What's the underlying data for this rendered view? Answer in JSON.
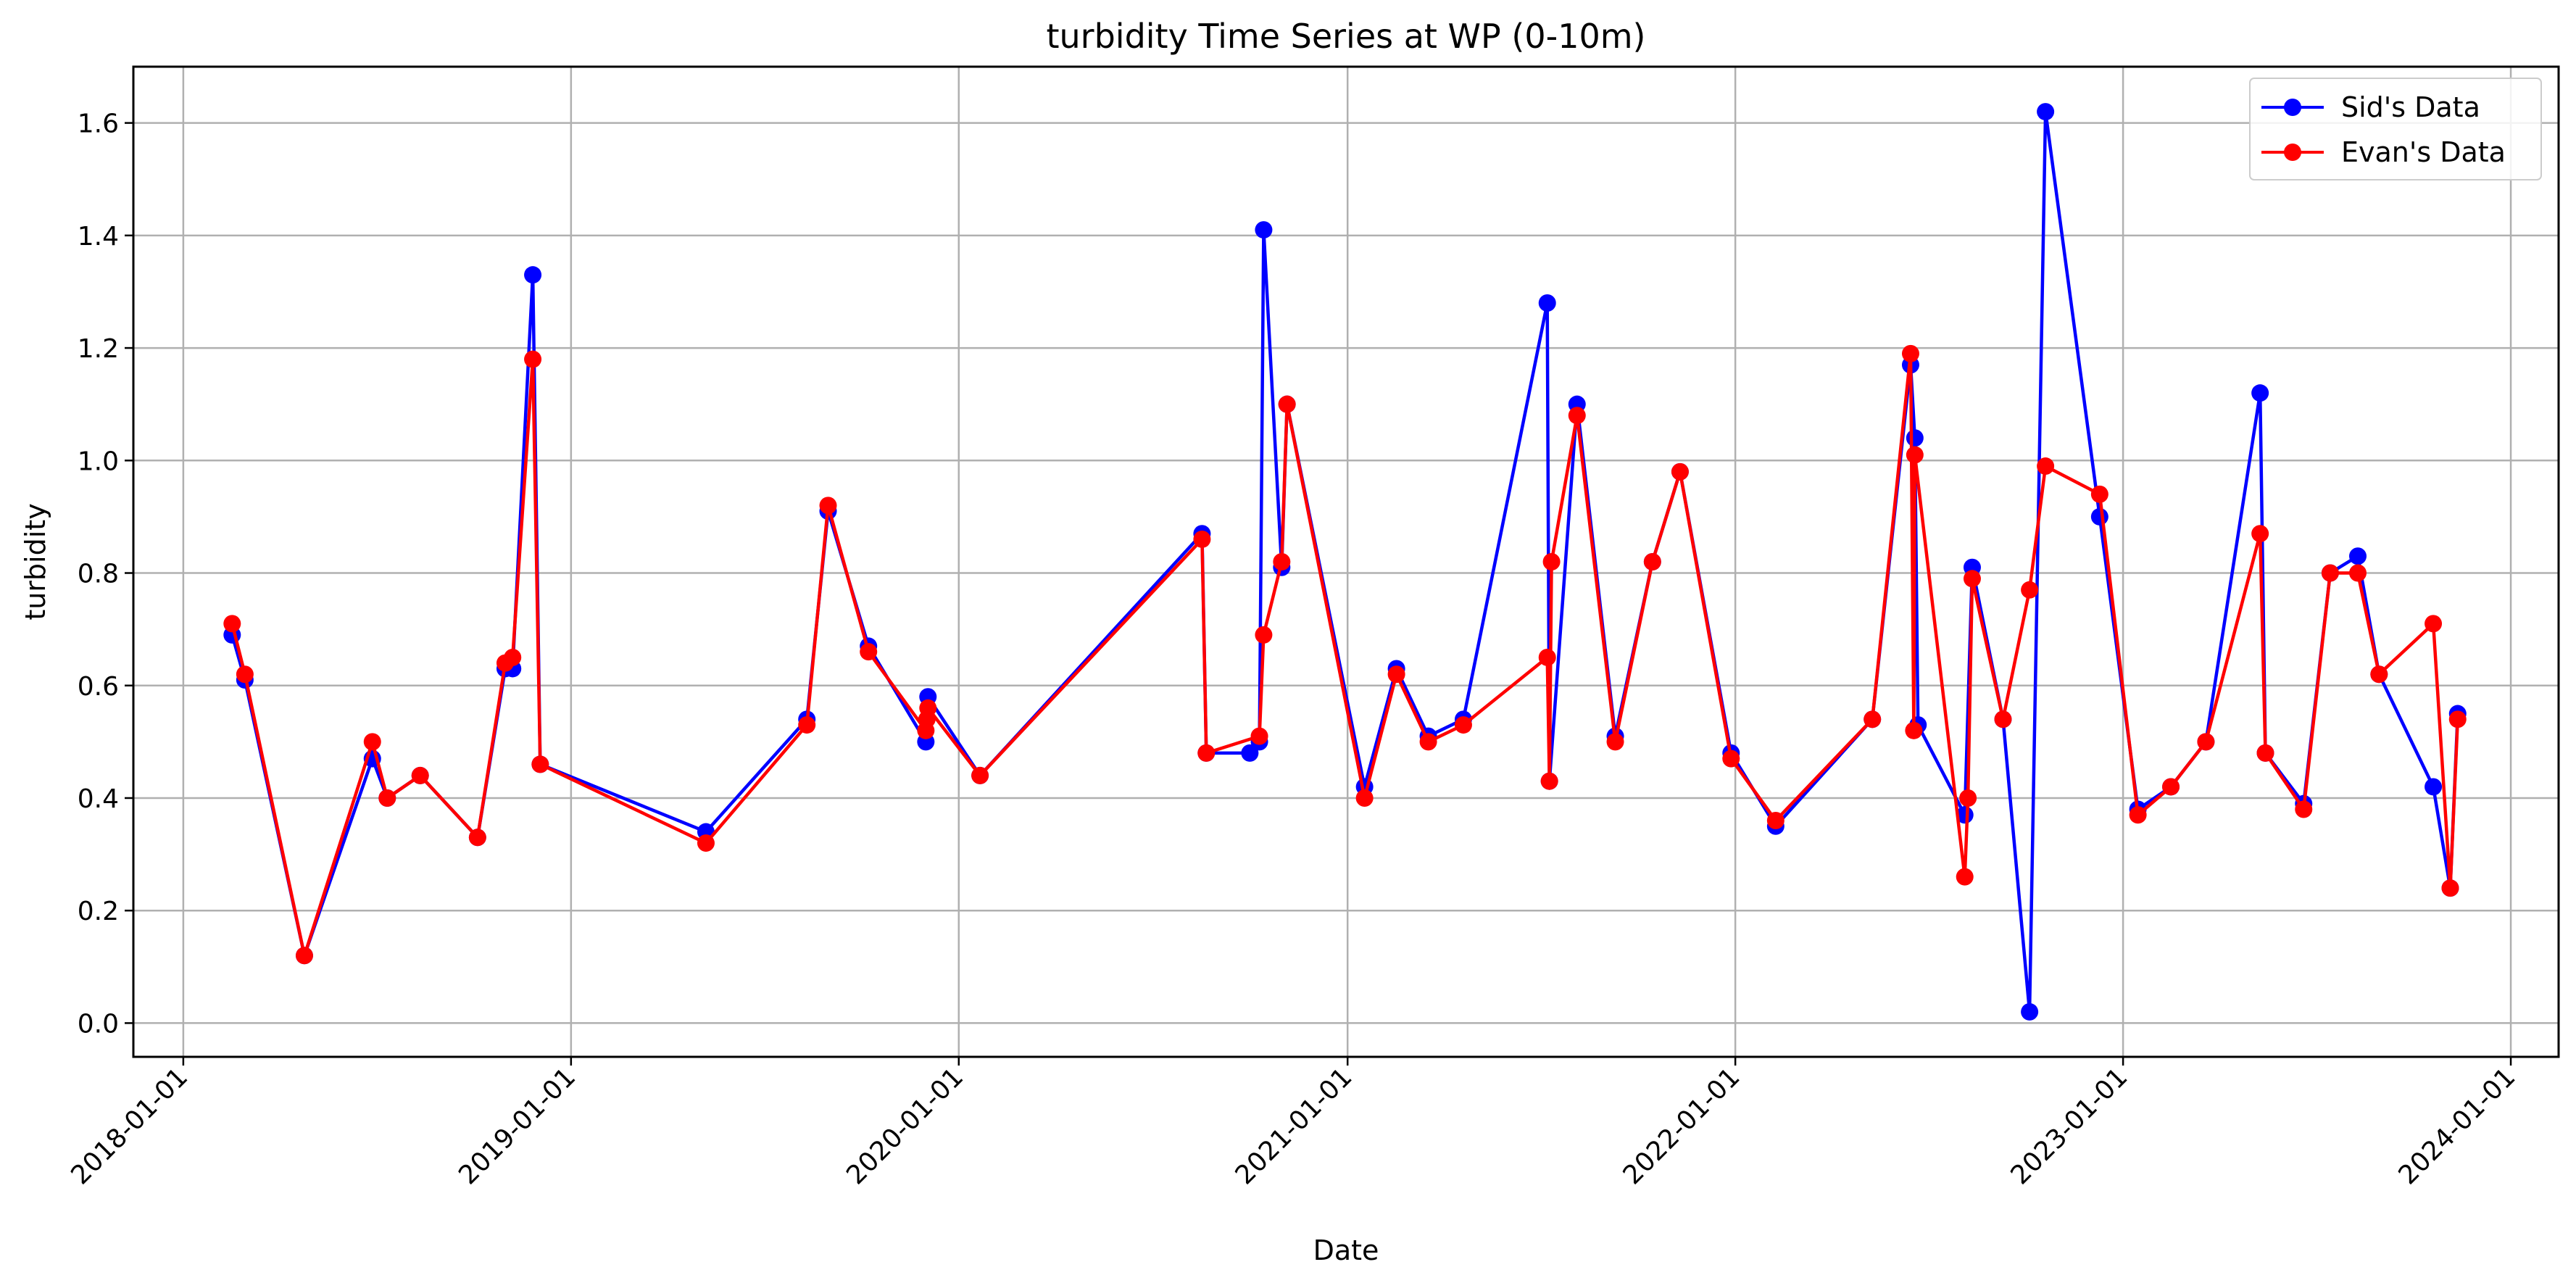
{
  "chart_data": {
    "type": "line",
    "title": "turbidity Time Series at WP (0-10m)",
    "xlabel": "Date",
    "ylabel": "turbidity",
    "x_axis": "date",
    "xlim": [
      "2017-11-15",
      "2024-02-15"
    ],
    "ylim": [
      -0.06,
      1.7
    ],
    "x_ticks": [
      "2018-01-01",
      "2019-01-01",
      "2020-01-01",
      "2021-01-01",
      "2022-01-01",
      "2023-01-01",
      "2024-01-01"
    ],
    "y_ticks": [
      "0.0",
      "0.2",
      "0.4",
      "0.6",
      "0.8",
      "1.0",
      "1.2",
      "1.4",
      "1.6"
    ],
    "grid": true,
    "legend": {
      "position": "top-right",
      "entries": [
        "Sid's Data",
        "Evan's Data"
      ]
    },
    "series": [
      {
        "name": "Sid's Data",
        "color": "#0000ff",
        "points": [
          [
            "2018-02-16",
            0.69
          ],
          [
            "2018-02-28",
            0.61
          ],
          [
            "2018-04-25",
            0.12
          ],
          [
            "2018-06-28",
            0.47
          ],
          [
            "2018-07-12",
            0.4
          ],
          [
            "2018-08-12",
            0.44
          ],
          [
            "2018-10-05",
            0.33
          ],
          [
            "2018-10-31",
            0.63
          ],
          [
            "2018-11-07",
            0.63
          ],
          [
            "2018-11-26",
            1.33
          ],
          [
            "2018-12-03",
            0.46
          ],
          [
            "2019-05-08",
            0.34
          ],
          [
            "2019-08-11",
            0.54
          ],
          [
            "2019-08-31",
            0.91
          ],
          [
            "2019-10-08",
            0.67
          ],
          [
            "2019-12-01",
            0.5
          ],
          [
            "2019-12-03",
            0.58
          ],
          [
            "2020-01-21",
            0.44
          ],
          [
            "2020-08-17",
            0.87
          ],
          [
            "2020-08-21",
            0.48
          ],
          [
            "2020-10-01",
            0.48
          ],
          [
            "2020-10-10",
            0.5
          ],
          [
            "2020-10-14",
            1.41
          ],
          [
            "2020-10-31",
            0.81
          ],
          [
            "2020-11-05",
            1.1
          ],
          [
            "2021-01-17",
            0.42
          ],
          [
            "2021-02-16",
            0.63
          ],
          [
            "2021-03-18",
            0.51
          ],
          [
            "2021-04-20",
            0.54
          ],
          [
            "2021-07-08",
            1.28
          ],
          [
            "2021-07-10",
            0.43
          ],
          [
            "2021-08-05",
            1.1
          ],
          [
            "2021-09-10",
            0.51
          ],
          [
            "2021-10-15",
            0.82
          ],
          [
            "2021-11-10",
            0.98
          ],
          [
            "2021-12-28",
            0.48
          ],
          [
            "2022-02-08",
            0.35
          ],
          [
            "2022-05-10",
            0.54
          ],
          [
            "2022-06-15",
            1.17
          ],
          [
            "2022-06-19",
            1.04
          ],
          [
            "2022-06-22",
            0.53
          ],
          [
            "2022-08-05",
            0.37
          ],
          [
            "2022-08-12",
            0.81
          ],
          [
            "2022-09-10",
            0.54
          ],
          [
            "2022-10-05",
            0.02
          ],
          [
            "2022-10-20",
            1.62
          ],
          [
            "2022-12-10",
            0.9
          ],
          [
            "2023-01-15",
            0.38
          ],
          [
            "2023-02-15",
            0.42
          ],
          [
            "2023-03-20",
            0.5
          ],
          [
            "2023-05-10",
            1.12
          ],
          [
            "2023-05-15",
            0.48
          ],
          [
            "2023-06-20",
            0.39
          ],
          [
            "2023-07-15",
            0.8
          ],
          [
            "2023-08-10",
            0.83
          ],
          [
            "2023-08-30",
            0.62
          ],
          [
            "2023-10-20",
            0.42
          ],
          [
            "2023-11-05",
            0.24
          ],
          [
            "2023-11-12",
            0.55
          ]
        ]
      },
      {
        "name": "Evan's Data",
        "color": "#ff0000",
        "points": [
          [
            "2018-02-16",
            0.71
          ],
          [
            "2018-02-28",
            0.62
          ],
          [
            "2018-04-25",
            0.12
          ],
          [
            "2018-06-28",
            0.5
          ],
          [
            "2018-07-12",
            0.4
          ],
          [
            "2018-08-12",
            0.44
          ],
          [
            "2018-10-05",
            0.33
          ],
          [
            "2018-10-31",
            0.64
          ],
          [
            "2018-11-07",
            0.65
          ],
          [
            "2018-11-26",
            1.18
          ],
          [
            "2018-12-03",
            0.46
          ],
          [
            "2019-05-08",
            0.32
          ],
          [
            "2019-08-11",
            0.53
          ],
          [
            "2019-08-31",
            0.92
          ],
          [
            "2019-10-08",
            0.66
          ],
          [
            "2019-12-01",
            0.52
          ],
          [
            "2019-12-02",
            0.54
          ],
          [
            "2019-12-03",
            0.56
          ],
          [
            "2020-01-21",
            0.44
          ],
          [
            "2020-08-17",
            0.86
          ],
          [
            "2020-08-21",
            0.48
          ],
          [
            "2020-10-10",
            0.51
          ],
          [
            "2020-10-14",
            0.69
          ],
          [
            "2020-10-31",
            0.82
          ],
          [
            "2020-11-05",
            1.1
          ],
          [
            "2021-01-17",
            0.4
          ],
          [
            "2021-02-16",
            0.62
          ],
          [
            "2021-03-18",
            0.5
          ],
          [
            "2021-04-20",
            0.53
          ],
          [
            "2021-07-08",
            0.65
          ],
          [
            "2021-07-10",
            0.43
          ],
          [
            "2021-07-12",
            0.82
          ],
          [
            "2021-08-05",
            1.08
          ],
          [
            "2021-09-10",
            0.5
          ],
          [
            "2021-10-15",
            0.82
          ],
          [
            "2021-11-10",
            0.98
          ],
          [
            "2021-12-28",
            0.47
          ],
          [
            "2022-02-08",
            0.36
          ],
          [
            "2022-05-10",
            0.54
          ],
          [
            "2022-06-15",
            1.19
          ],
          [
            "2022-06-18",
            0.52
          ],
          [
            "2022-06-19",
            1.01
          ],
          [
            "2022-08-05",
            0.26
          ],
          [
            "2022-08-08",
            0.4
          ],
          [
            "2022-08-12",
            0.79
          ],
          [
            "2022-09-10",
            0.54
          ],
          [
            "2022-10-05",
            0.77
          ],
          [
            "2022-10-20",
            0.99
          ],
          [
            "2022-12-10",
            0.94
          ],
          [
            "2023-01-15",
            0.37
          ],
          [
            "2023-02-15",
            0.42
          ],
          [
            "2023-03-20",
            0.5
          ],
          [
            "2023-05-10",
            0.87
          ],
          [
            "2023-05-15",
            0.48
          ],
          [
            "2023-06-20",
            0.38
          ],
          [
            "2023-07-15",
            0.8
          ],
          [
            "2023-08-10",
            0.8
          ],
          [
            "2023-08-30",
            0.62
          ],
          [
            "2023-10-20",
            0.71
          ],
          [
            "2023-11-05",
            0.24
          ],
          [
            "2023-11-12",
            0.54
          ]
        ]
      }
    ]
  }
}
